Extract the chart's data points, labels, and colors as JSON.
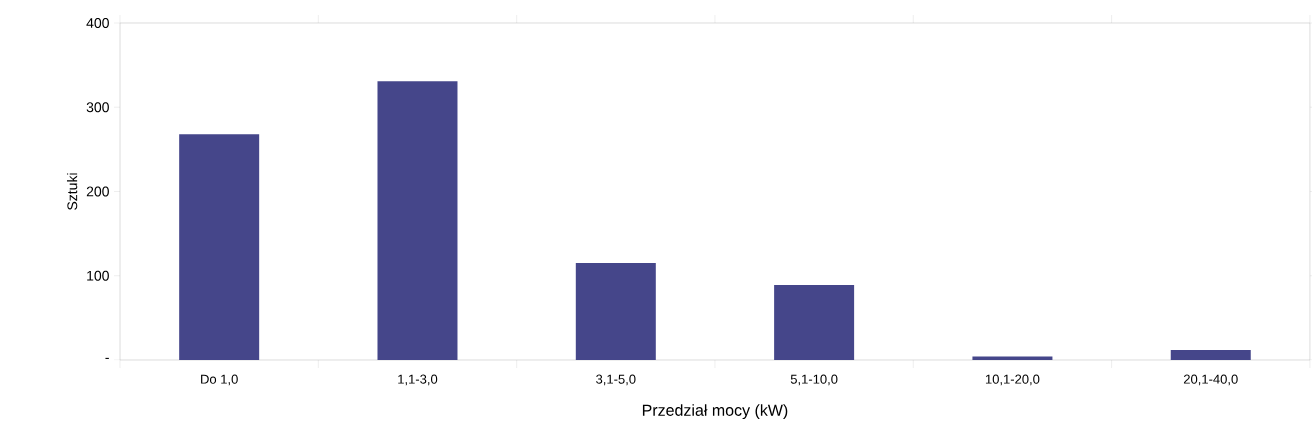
{
  "chart_data": {
    "type": "bar",
    "xlabel": "Przedział mocy (kW)",
    "ylabel": "Sztuki",
    "categories": [
      "Do 1,0",
      "1,1-3,0",
      "3,1-5,0",
      "5,1-10,0",
      "10,1-20,0",
      "20,1-40,0"
    ],
    "values": [
      268,
      331,
      115,
      89,
      4,
      12
    ],
    "color": "#45468a",
    "ylim": [
      0,
      400
    ],
    "yticks": [
      {
        "value": 0,
        "label": "-"
      },
      100,
      200,
      300,
      400
    ],
    "grid": false
  }
}
